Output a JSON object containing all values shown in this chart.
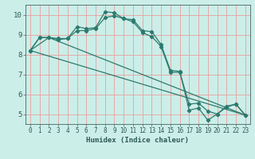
{
  "xlabel": "Humidex (Indice chaleur)",
  "bg_color": "#cceee8",
  "grid_color": "#e8a0a0",
  "line_color": "#2d7a6e",
  "marker": "D",
  "marker_size": 2.2,
  "linewidth": 0.9,
  "xlim": [
    -0.5,
    23.5
  ],
  "ylim": [
    4.5,
    10.5
  ],
  "yticks": [
    5,
    6,
    7,
    8,
    9,
    10
  ],
  "xticks": [
    0,
    1,
    2,
    3,
    4,
    5,
    6,
    7,
    8,
    9,
    10,
    11,
    12,
    13,
    14,
    15,
    16,
    17,
    18,
    19,
    20,
    21,
    22,
    23
  ],
  "series": [
    {
      "x": [
        0,
        1,
        2,
        3,
        4,
        5,
        6,
        7,
        8,
        9,
        10,
        11,
        12,
        13,
        14,
        15,
        16,
        17,
        18,
        19,
        20,
        21,
        22,
        23
      ],
      "y": [
        8.2,
        8.85,
        8.85,
        8.8,
        8.8,
        9.4,
        9.3,
        9.35,
        10.15,
        10.1,
        9.8,
        9.75,
        9.2,
        9.15,
        8.5,
        7.2,
        7.15,
        5.2,
        5.3,
        4.7,
        5.0,
        5.4,
        5.5,
        4.95
      ]
    },
    {
      "x": [
        0,
        1,
        2,
        3,
        4,
        5,
        6,
        7,
        8,
        9,
        10,
        11,
        12,
        13,
        14,
        15,
        16,
        17,
        18,
        19,
        20,
        21,
        22,
        23
      ],
      "y": [
        8.2,
        8.85,
        8.85,
        8.75,
        8.8,
        9.2,
        9.2,
        9.3,
        9.85,
        9.95,
        9.8,
        9.65,
        9.1,
        8.9,
        8.4,
        7.1,
        7.1,
        5.5,
        5.55,
        5.15,
        5.0,
        5.35,
        5.5,
        4.95
      ]
    },
    {
      "x": [
        0,
        2,
        23
      ],
      "y": [
        8.2,
        8.85,
        4.95
      ]
    },
    {
      "x": [
        0,
        23
      ],
      "y": [
        8.2,
        4.95
      ]
    }
  ]
}
